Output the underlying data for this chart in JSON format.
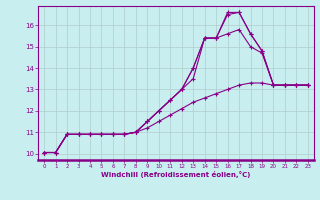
{
  "xlabel": "Windchill (Refroidissement éolien,°C)",
  "background_color": "#c8eef0",
  "line_color": "#880088",
  "grid_color": "#b0cccc",
  "xlim": [
    -0.5,
    23.5
  ],
  "ylim": [
    9.7,
    16.9
  ],
  "xticks": [
    0,
    1,
    2,
    3,
    4,
    5,
    6,
    7,
    8,
    9,
    10,
    11,
    12,
    13,
    14,
    15,
    16,
    17,
    18,
    19,
    20,
    21,
    22,
    23
  ],
  "yticks": [
    10,
    11,
    12,
    13,
    14,
    15,
    16
  ],
  "lines": [
    {
      "x": [
        0,
        1,
        2,
        3,
        4,
        5,
        6,
        7,
        8,
        9,
        10,
        11,
        12,
        13,
        14,
        15,
        16,
        17,
        18,
        19,
        20,
        21,
        22,
        23
      ],
      "y": [
        10.05,
        10.05,
        10.9,
        10.9,
        10.9,
        10.9,
        10.9,
        10.9,
        11.0,
        11.5,
        12.0,
        12.5,
        13.0,
        13.5,
        15.4,
        15.4,
        16.6,
        16.6,
        15.6,
        14.8,
        13.2,
        13.2,
        13.2,
        13.2
      ]
    },
    {
      "x": [
        0,
        1,
        2,
        3,
        4,
        5,
        6,
        7,
        8,
        9,
        10,
        11,
        12,
        13,
        14,
        15,
        16,
        17,
        18,
        19,
        20,
        21,
        22,
        23
      ],
      "y": [
        10.05,
        10.05,
        10.9,
        10.9,
        10.9,
        10.9,
        10.9,
        10.9,
        11.0,
        11.5,
        12.0,
        12.5,
        13.0,
        14.0,
        15.4,
        15.4,
        16.5,
        16.6,
        15.6,
        14.8,
        13.2,
        13.2,
        13.2,
        13.2
      ]
    },
    {
      "x": [
        0,
        1,
        2,
        3,
        4,
        5,
        6,
        7,
        8,
        9,
        10,
        11,
        12,
        13,
        14,
        15,
        16,
        17,
        18,
        19,
        20,
        21,
        22,
        23
      ],
      "y": [
        10.05,
        10.05,
        10.9,
        10.9,
        10.9,
        10.9,
        10.9,
        10.9,
        11.0,
        11.5,
        12.0,
        12.5,
        13.0,
        14.0,
        15.4,
        15.4,
        15.6,
        15.8,
        15.0,
        14.7,
        13.2,
        13.2,
        13.2,
        13.2
      ]
    },
    {
      "x": [
        0,
        1,
        2,
        3,
        4,
        5,
        6,
        7,
        8,
        9,
        10,
        11,
        12,
        13,
        14,
        15,
        16,
        17,
        18,
        19,
        20,
        21,
        22,
        23
      ],
      "y": [
        10.05,
        10.05,
        10.9,
        10.9,
        10.9,
        10.9,
        10.9,
        10.9,
        11.0,
        11.2,
        11.5,
        11.8,
        12.1,
        12.4,
        12.6,
        12.8,
        13.0,
        13.2,
        13.3,
        13.3,
        13.2,
        13.2,
        13.2,
        13.2
      ]
    }
  ]
}
